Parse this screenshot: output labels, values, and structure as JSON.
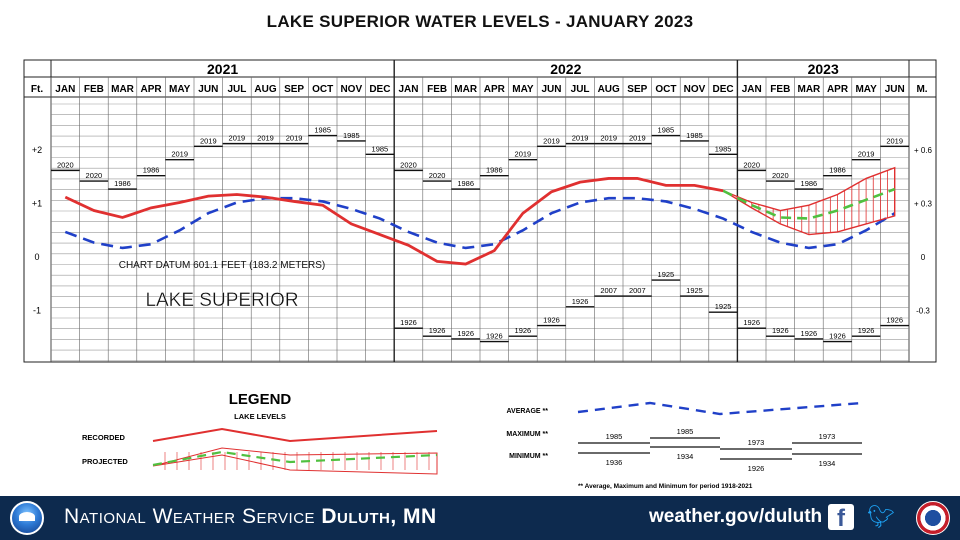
{
  "title": "LAKE SUPERIOR WATER LEVELS - JANUARY 2023",
  "chart_data": {
    "type": "line",
    "title": "LAKE SUPERIOR WATER LEVELS - JANUARY 2023",
    "years": [
      "2021",
      "2022",
      "2023"
    ],
    "months": [
      "JAN",
      "FEB",
      "MAR",
      "APR",
      "MAY",
      "JUN",
      "JUL",
      "AUG",
      "SEP",
      "OCT",
      "NOV",
      "DEC"
    ],
    "y_unit_left": "Ft.",
    "y_unit_right": "M.",
    "y_ticks_left": [
      "+2",
      "+1",
      "0",
      "-1"
    ],
    "y_ticks_right": [
      "+ 0.6",
      "+ 0.3",
      "0",
      "-0.3"
    ],
    "ylim": [
      -2,
      3
    ],
    "datum_note": "CHART DATUM 601.1 FEET (183.2 METERS)",
    "lake_name": "LAKE SUPERIOR",
    "series": [
      {
        "name": "RECORDED",
        "color": "#e03030",
        "values": [
          1.1,
          0.85,
          0.72,
          0.9,
          1.0,
          1.12,
          1.15,
          1.1,
          1.02,
          0.95,
          0.6,
          0.4,
          0.2,
          -0.1,
          -0.15,
          0.1,
          0.8,
          1.2,
          1.38,
          1.45,
          1.45,
          1.32,
          1.32,
          1.22
        ]
      },
      {
        "name": "AVERAGE",
        "color": "#2040c8",
        "values": [
          0.45,
          0.25,
          0.15,
          0.22,
          0.48,
          0.8,
          1.0,
          1.08,
          1.08,
          1.02,
          0.88,
          0.7,
          0.45,
          0.25,
          0.15,
          0.22,
          0.48,
          0.8,
          1.0,
          1.08,
          1.08,
          1.02,
          0.88,
          0.7,
          0.45,
          0.25,
          0.15,
          0.22,
          0.48,
          0.8
        ]
      },
      {
        "name": "PROJECTED",
        "color": "#50c040",
        "x_start": 23,
        "values": [
          1.22,
          0.95,
          0.72,
          0.7,
          0.85,
          1.05,
          1.25
        ],
        "upper": [
          1.22,
          1.0,
          0.85,
          0.95,
          1.15,
          1.45,
          1.65
        ],
        "lower": [
          1.22,
          0.9,
          0.6,
          0.4,
          0.45,
          0.6,
          0.75
        ]
      }
    ],
    "maximum": {
      "years": [
        "2020",
        "2020",
        "1986",
        "1986",
        "2019",
        "2019",
        "2019",
        "2019",
        "2019",
        "1985",
        "1985",
        "1985"
      ],
      "values": [
        1.75,
        1.55,
        1.4,
        1.65,
        1.95,
        2.2,
        2.25,
        2.25,
        2.25,
        2.4,
        2.3,
        2.05
      ]
    },
    "minimum": {
      "years": [
        "1926",
        "1926",
        "1926",
        "1926",
        "1926",
        "1926",
        "1926",
        "2007",
        "2007",
        "1925",
        "1925",
        "1925"
      ],
      "values": [
        -1.2,
        -1.35,
        -1.4,
        -1.45,
        -1.35,
        -1.15,
        -0.8,
        -0.6,
        -0.6,
        -0.3,
        -0.6,
        -0.9
      ]
    }
  },
  "legend": {
    "title": "LEGEND",
    "subtitle": "LAKE LEVELS",
    "recorded_label": "RECORDED",
    "projected_label": "PROJECTED",
    "average_label": "AVERAGE **",
    "maximum_label": "MAXIMUM **",
    "minimum_label": "MINIMUM **",
    "max_sample": [
      "1985",
      "1985",
      "1973",
      "1973"
    ],
    "min_sample": [
      "1936",
      "1934",
      "1926",
      "1934"
    ],
    "footnote": "** Average, Maximum and Minimum for period 1918-2021"
  },
  "footer": {
    "org": "National Weather Service",
    "office": "Duluth, MN",
    "website": "weather.gov/duluth",
    "colors": {
      "bar": "#0d2a4e"
    }
  }
}
